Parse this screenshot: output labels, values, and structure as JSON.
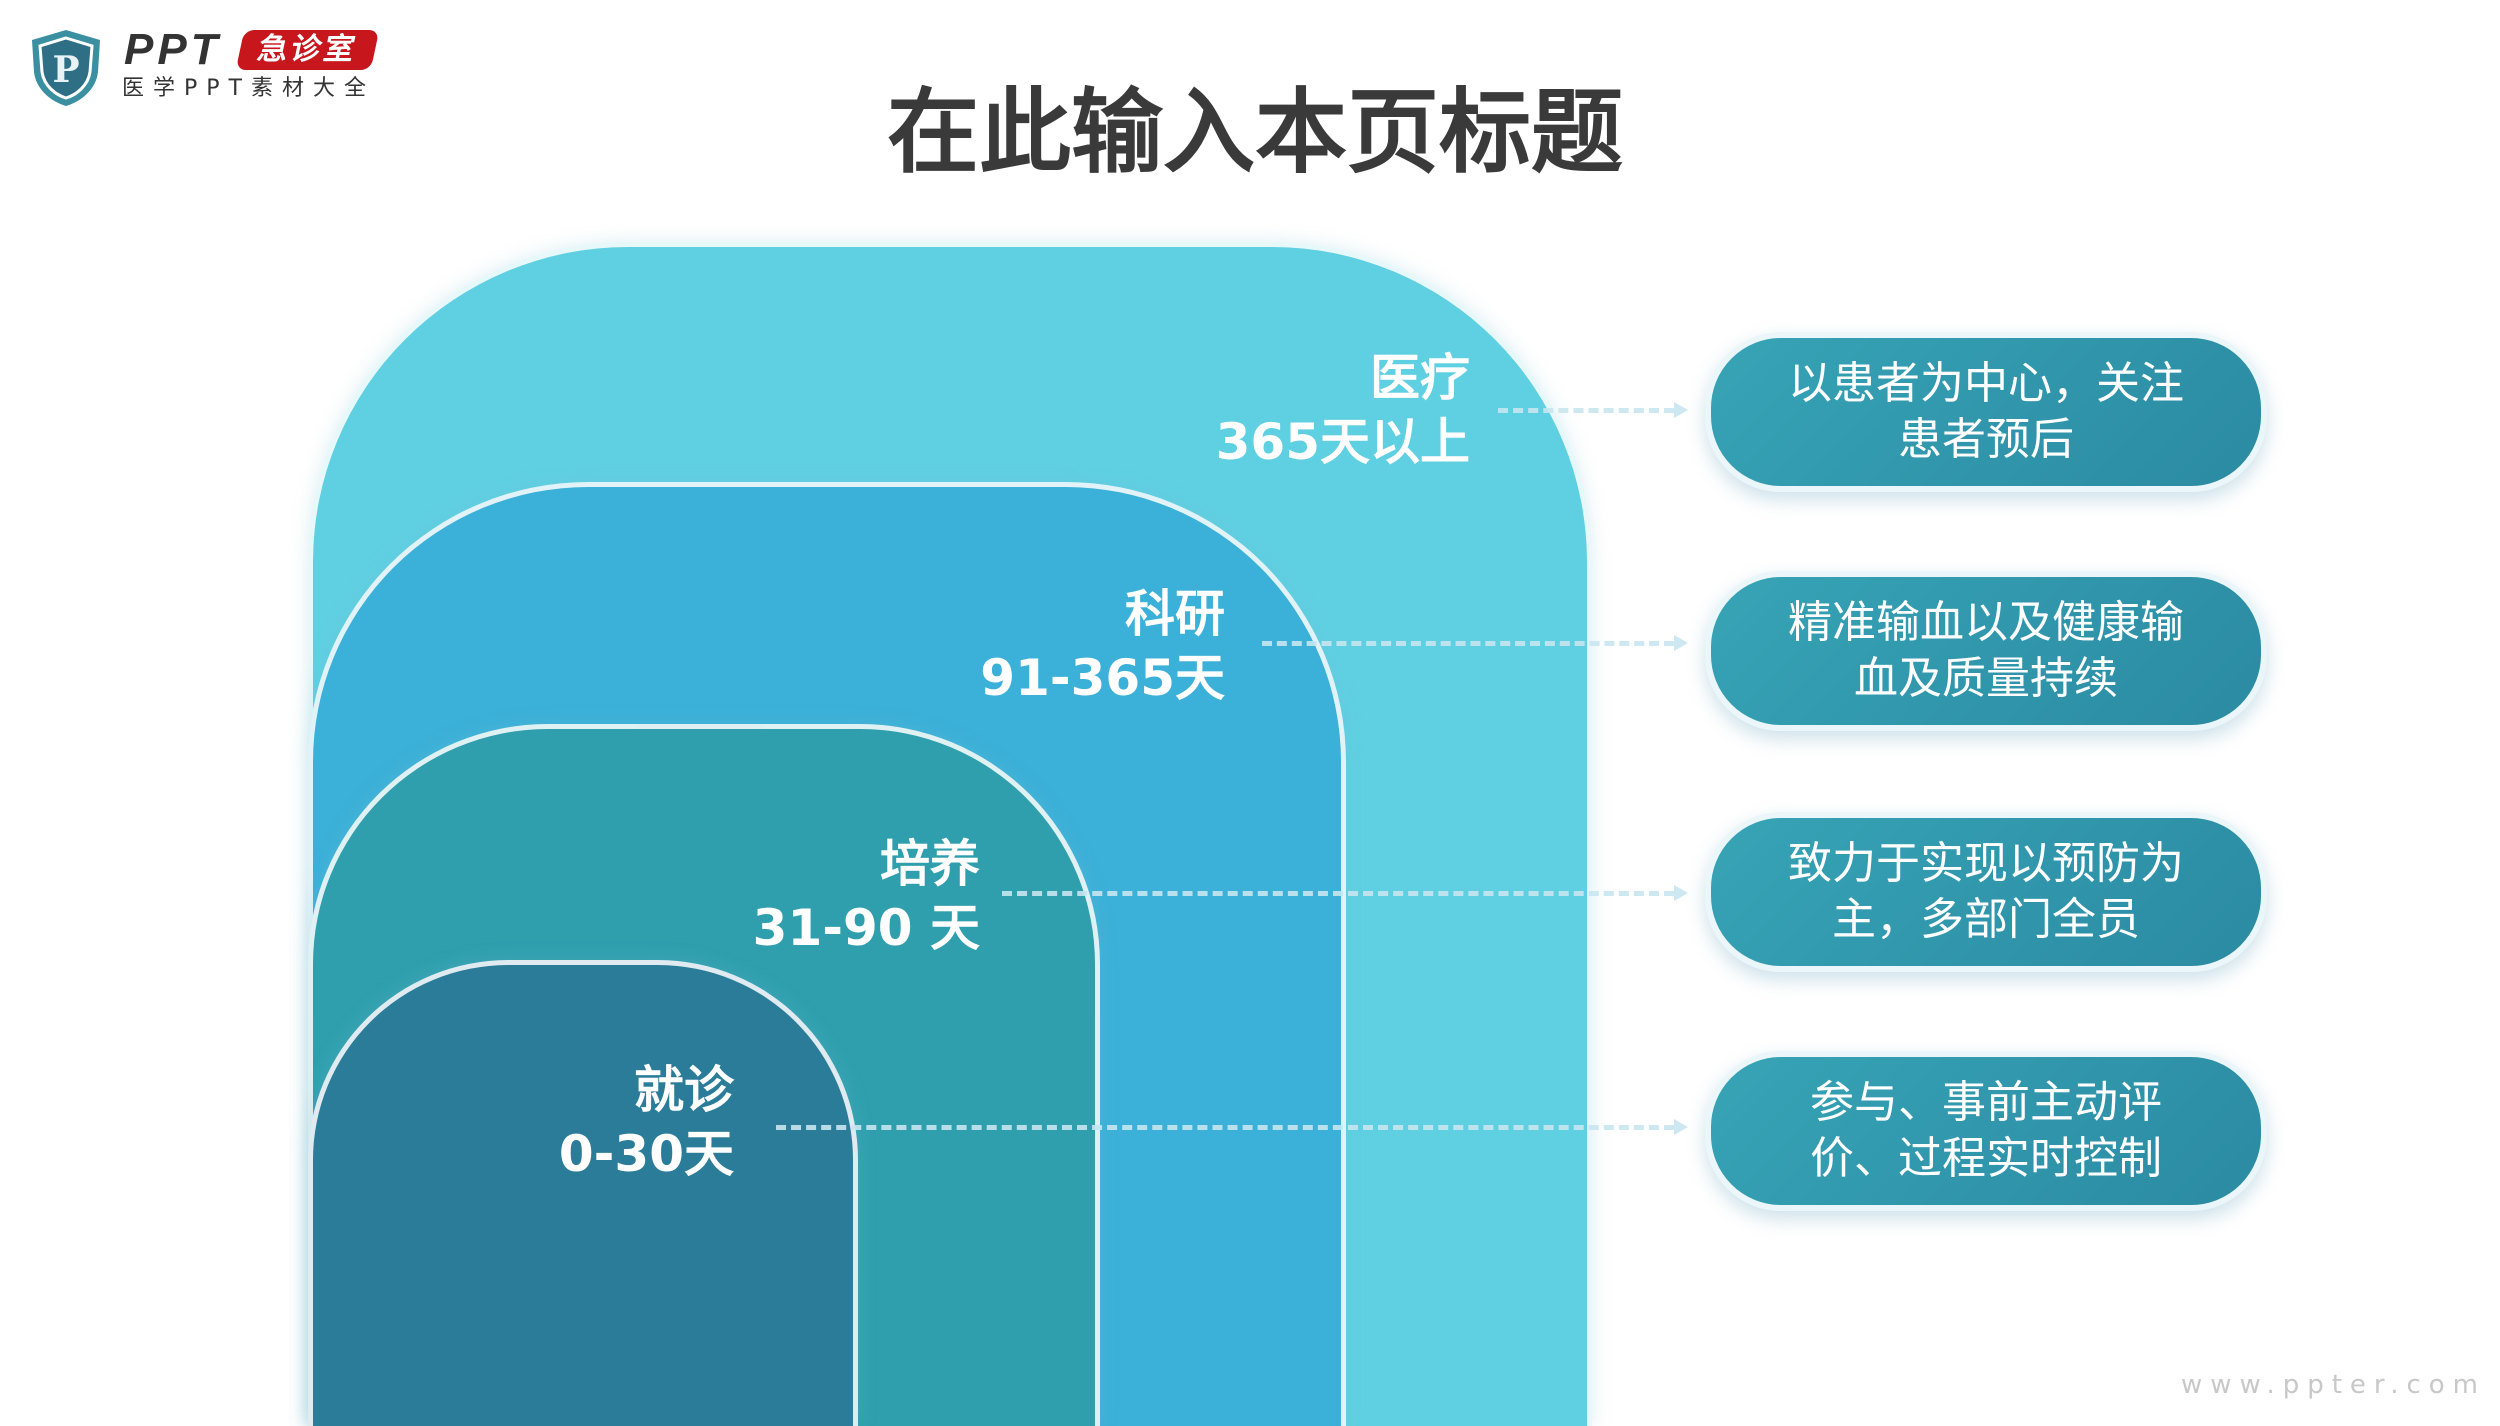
{
  "logo": {
    "brand": "PPT",
    "badge": "急诊室",
    "subtitle": "医学PPT素材大全",
    "shield_letter": "P"
  },
  "title": "在此输入本页标题",
  "colors": {
    "tier1": "#5fd0e2",
    "tier2": "#3bb0d8",
    "tier3": "#2f9fae",
    "tier4": "#2b7c98",
    "pill": "#2f96ab",
    "badge": "#c8161d"
  },
  "tiers": [
    {
      "name": "医疗",
      "range": "365天以上",
      "description": "以患者为中心，关注患者预后"
    },
    {
      "name": "科研",
      "range": "91-365天",
      "description": "精准输血以及健康输血及质量持续"
    },
    {
      "name": "培养",
      "range": "31-90 天",
      "description": "致力于实现以预防为主，多部门全员"
    },
    {
      "name": "就诊",
      "range": "0-30天",
      "description": "参与、事前主动评价、过程实时控制"
    }
  ],
  "watermark": "www.ppter.com"
}
